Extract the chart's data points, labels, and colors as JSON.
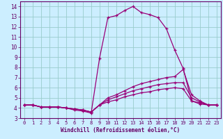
{
  "xlabel": "Windchill (Refroidissement éolien,°C)",
  "background_color": "#cceeff",
  "grid_color": "#99cccc",
  "line_color": "#990077",
  "xlim": [
    -0.5,
    23.5
  ],
  "ylim": [
    3,
    14.5
  ],
  "xticks": [
    0,
    1,
    2,
    3,
    4,
    5,
    6,
    7,
    8,
    9,
    10,
    11,
    12,
    13,
    14,
    15,
    16,
    17,
    18,
    19,
    20,
    21,
    22,
    23
  ],
  "yticks": [
    3,
    4,
    5,
    6,
    7,
    8,
    9,
    10,
    11,
    12,
    13,
    14
  ],
  "lines": [
    {
      "x": [
        0,
        1,
        2,
        3,
        4,
        5,
        6,
        7,
        8,
        9,
        10,
        11,
        12,
        13,
        14,
        15,
        16,
        17,
        18,
        19,
        20,
        21,
        22,
        23
      ],
      "y": [
        4.3,
        4.3,
        4.1,
        4.1,
        4.1,
        4.0,
        3.8,
        3.7,
        3.5,
        8.9,
        12.9,
        13.1,
        13.6,
        14.0,
        13.4,
        13.2,
        12.9,
        11.8,
        9.7,
        7.9,
        4.7,
        4.4,
        4.3,
        4.3
      ]
    },
    {
      "x": [
        0,
        1,
        2,
        3,
        4,
        5,
        6,
        7,
        8,
        9,
        10,
        11,
        12,
        13,
        14,
        15,
        16,
        17,
        18,
        19,
        20,
        21,
        22,
        23
      ],
      "y": [
        4.3,
        4.3,
        4.1,
        4.1,
        4.1,
        4.0,
        3.9,
        3.8,
        3.6,
        4.3,
        5.0,
        5.3,
        5.7,
        6.1,
        6.4,
        6.6,
        6.8,
        7.0,
        7.1,
        7.8,
        5.3,
        4.7,
        4.3,
        4.3
      ]
    },
    {
      "x": [
        0,
        1,
        2,
        3,
        4,
        5,
        6,
        7,
        8,
        9,
        10,
        11,
        12,
        13,
        14,
        15,
        16,
        17,
        18,
        19,
        20,
        21,
        22,
        23
      ],
      "y": [
        4.3,
        4.3,
        4.1,
        4.1,
        4.1,
        4.0,
        3.9,
        3.8,
        3.6,
        4.3,
        4.8,
        5.1,
        5.4,
        5.7,
        5.9,
        6.1,
        6.3,
        6.4,
        6.5,
        6.5,
        5.0,
        4.6,
        4.3,
        4.3
      ]
    },
    {
      "x": [
        0,
        1,
        2,
        3,
        4,
        5,
        6,
        7,
        8,
        9,
        10,
        11,
        12,
        13,
        14,
        15,
        16,
        17,
        18,
        19,
        20,
        21,
        22,
        23
      ],
      "y": [
        4.3,
        4.3,
        4.1,
        4.1,
        4.1,
        4.0,
        3.9,
        3.8,
        3.6,
        4.3,
        4.6,
        4.8,
        5.1,
        5.3,
        5.5,
        5.6,
        5.8,
        5.9,
        6.0,
        5.9,
        4.7,
        4.5,
        4.3,
        4.3
      ]
    }
  ]
}
